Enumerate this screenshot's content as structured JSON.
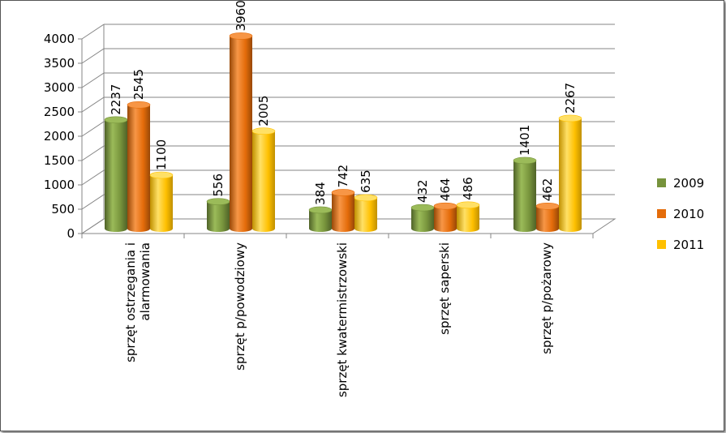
{
  "chart_data": {
    "type": "bar",
    "categories": [
      [
        "sprzęt ostrzegania i",
        "alarmowania"
      ],
      [
        "sprzęt p/powodziowy"
      ],
      [
        "sprzęt kwatermistrzowski"
      ],
      [
        "sprzęt saperski"
      ],
      [
        "sprzęt p/pożarowy"
      ]
    ],
    "series": [
      {
        "name": "2009",
        "values": [
          2237,
          556,
          384,
          432,
          1401
        ],
        "color": "#77933C",
        "color_light": "#9BBB59",
        "color_dark": "#4F6228"
      },
      {
        "name": "2010",
        "values": [
          2545,
          3960,
          742,
          464,
          462
        ],
        "color": "#E46C0A",
        "color_light": "#F79646",
        "color_dark": "#984807"
      },
      {
        "name": "2011",
        "values": [
          1100,
          2005,
          635,
          486,
          2267
        ],
        "color": "#FFC000",
        "color_light": "#FFE066",
        "color_dark": "#C09000"
      }
    ],
    "y_ticks": [
      0,
      500,
      1000,
      1500,
      2000,
      2500,
      3000,
      3500,
      4000
    ],
    "ylim": [
      0,
      4000
    ],
    "grid": true,
    "legend_position": "right"
  }
}
